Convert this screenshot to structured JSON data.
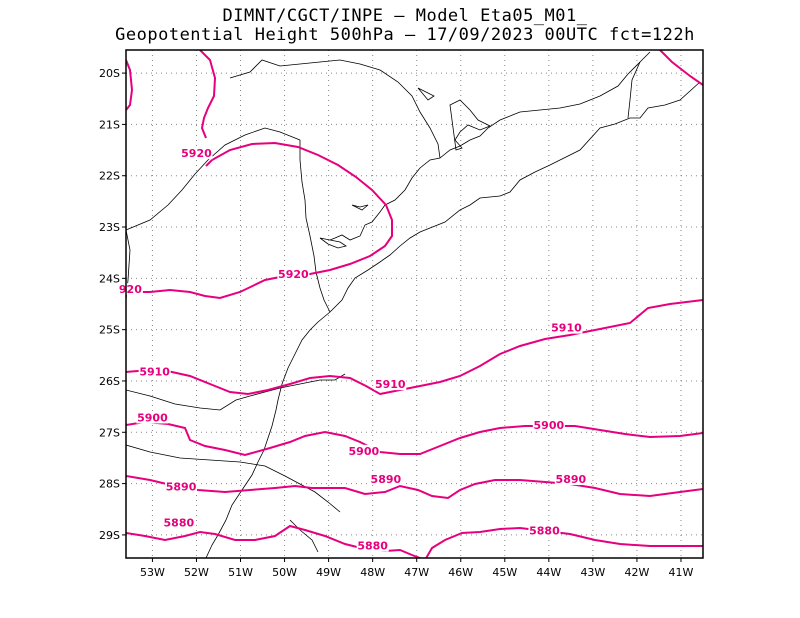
{
  "title": {
    "line1": "DIMNT/CGCT/INPE –  Model Eta05_M01_",
    "line2": "Geopotential Height 500hPa –  17/09/2023 00UTC fct=122h"
  },
  "map": {
    "lon_range": [
      -53.6,
      -40.5
    ],
    "lat_range": [
      -29.45,
      -19.55
    ],
    "lon_ticks": [
      {
        "value": -53,
        "label": "53W"
      },
      {
        "value": -52,
        "label": "52W"
      },
      {
        "value": -51,
        "label": "51W"
      },
      {
        "value": -50,
        "label": "50W"
      },
      {
        "value": -49,
        "label": "49W"
      },
      {
        "value": -48,
        "label": "48W"
      },
      {
        "value": -47,
        "label": "47W"
      },
      {
        "value": -46,
        "label": "46W"
      },
      {
        "value": -45,
        "label": "45W"
      },
      {
        "value": -44,
        "label": "44W"
      },
      {
        "value": -43,
        "label": "43W"
      },
      {
        "value": -42,
        "label": "42W"
      },
      {
        "value": -41,
        "label": "41W"
      }
    ],
    "lat_ticks": [
      {
        "value": -20,
        "label": "20S"
      },
      {
        "value": -21,
        "label": "21S"
      },
      {
        "value": -22,
        "label": "22S"
      },
      {
        "value": -23,
        "label": "23S"
      },
      {
        "value": -24,
        "label": "24S"
      },
      {
        "value": -25,
        "label": "25S"
      },
      {
        "value": -26,
        "label": "26S"
      },
      {
        "value": -27,
        "label": "27S"
      },
      {
        "value": -28,
        "label": "28S"
      },
      {
        "value": -29,
        "label": "29S"
      }
    ],
    "grid": "dotted",
    "contour_color": "#e6007e",
    "boundary_color": "#000000",
    "contours": [
      {
        "value": 5920,
        "labels": [
          {
            "text": "5920",
            "lon": -52.0,
            "lat": -21.6
          },
          {
            "text": "5920",
            "lon": -49.8,
            "lat": -23.95
          },
          {
            "text": "920",
            "lon": -53.5,
            "lat": -24.25
          }
        ]
      },
      {
        "value": 5910,
        "labels": [
          {
            "text": "5910",
            "lon": -52.95,
            "lat": -25.85
          },
          {
            "text": "5910",
            "lon": -47.6,
            "lat": -26.1
          },
          {
            "text": "5910",
            "lon": -43.6,
            "lat": -25.0
          }
        ]
      },
      {
        "value": 5900,
        "labels": [
          {
            "text": "5900",
            "lon": -53.0,
            "lat": -26.75
          },
          {
            "text": "5900",
            "lon": -48.2,
            "lat": -27.4
          },
          {
            "text": "5900",
            "lon": -44.0,
            "lat": -26.9
          }
        ]
      },
      {
        "value": 5890,
        "labels": [
          {
            "text": "5890",
            "lon": -52.35,
            "lat": -28.1
          },
          {
            "text": "5890",
            "lon": -47.7,
            "lat": -27.95
          },
          {
            "text": "5890",
            "lon": -43.5,
            "lat": -27.95
          }
        ]
      },
      {
        "value": 5880,
        "labels": [
          {
            "text": "5880",
            "lon": -52.4,
            "lat": -28.8
          },
          {
            "text": "5880",
            "lon": -48.0,
            "lat": -29.25
          },
          {
            "text": "5880",
            "lon": -44.1,
            "lat": -28.95
          }
        ]
      }
    ]
  }
}
